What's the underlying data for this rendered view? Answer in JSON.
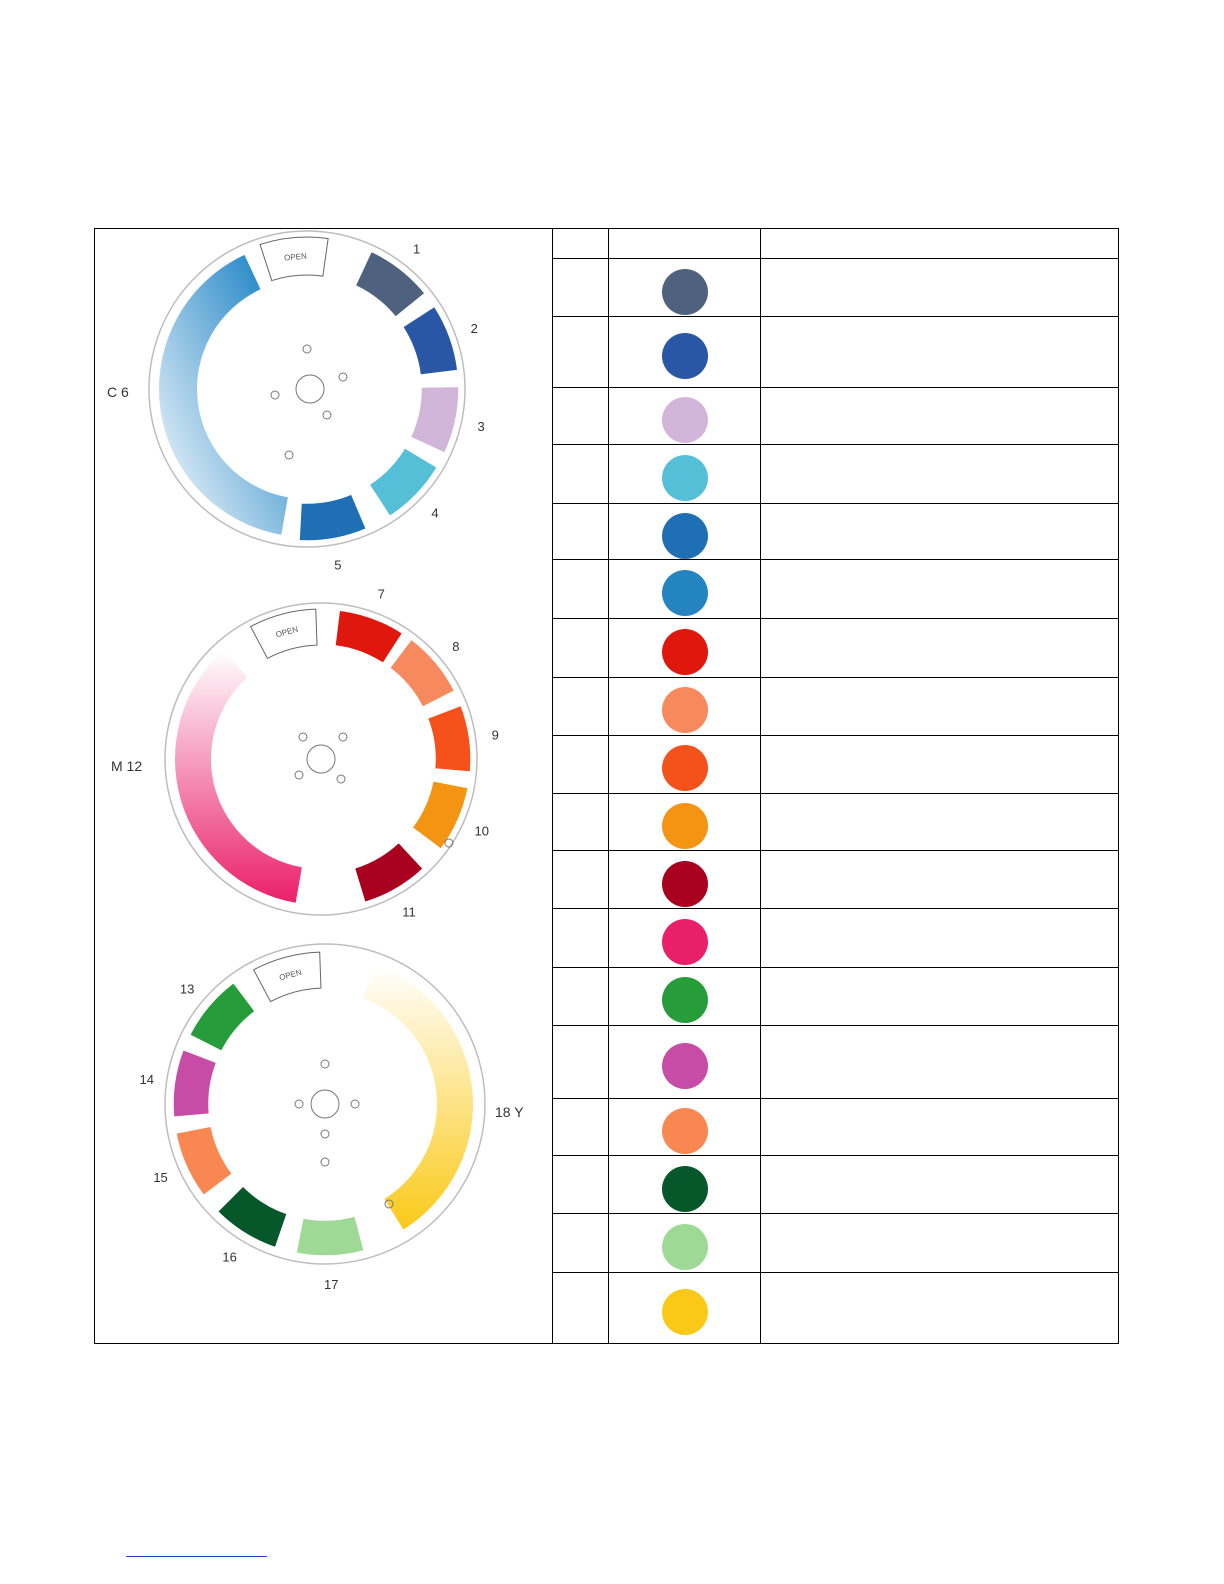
{
  "wheels": [
    {
      "name": "C",
      "label_letter": "C",
      "label_number": "6",
      "gradient_to": "#0a78c0",
      "open_text": "OPEN",
      "slots": [
        {
          "num": "1",
          "color": "#4e6280"
        },
        {
          "num": "2",
          "color": "#2a56a6"
        },
        {
          "num": "3",
          "color": "#d2b6da"
        },
        {
          "num": "4",
          "color": "#56bfd8"
        },
        {
          "num": "5",
          "color": "#1f6fb4"
        }
      ]
    },
    {
      "name": "M",
      "label_letter": "M",
      "label_number": "12",
      "gradient_to": "#ea1f6a",
      "open_text": "OPEN",
      "slots": [
        {
          "num": "7",
          "color": "#e0170d"
        },
        {
          "num": "8",
          "color": "#f7895f"
        },
        {
          "num": "9",
          "color": "#f4521a"
        },
        {
          "num": "10",
          "color": "#f39412"
        },
        {
          "num": "11",
          "color": "#a8001e"
        }
      ]
    },
    {
      "name": "Y",
      "label_letter": "Y",
      "label_number": "18",
      "gradient_to": "#fac918",
      "open_text": "OPEN",
      "slots": [
        {
          "num": "13",
          "color": "#279c3a"
        },
        {
          "num": "14",
          "color": "#c64ca6"
        },
        {
          "num": "15",
          "color": "#f88752"
        },
        {
          "num": "16",
          "color": "#06582a"
        },
        {
          "num": "17",
          "color": "#9ed996"
        }
      ]
    }
  ],
  "swatches": [
    {
      "color": "#4e6280"
    },
    {
      "color": "#2a56a6"
    },
    {
      "color": "#d2b6da"
    },
    {
      "color": "#56bfd8"
    },
    {
      "color": "#1f6fb4"
    },
    {
      "color": "#2484c0"
    },
    {
      "color": "#e0170d"
    },
    {
      "color": "#f7895f"
    },
    {
      "color": "#f4521a"
    },
    {
      "color": "#f39412"
    },
    {
      "color": "#a8001e"
    },
    {
      "color": "#ea1f6a"
    },
    {
      "color": "#279c3a"
    },
    {
      "color": "#c64ca6"
    },
    {
      "color": "#f88752"
    },
    {
      "color": "#06582a"
    },
    {
      "color": "#9ed996"
    },
    {
      "color": "#fac918"
    }
  ]
}
